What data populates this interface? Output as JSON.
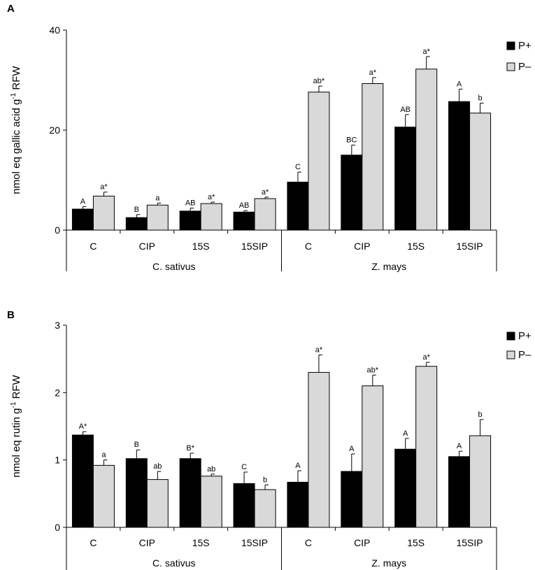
{
  "chart_data": [
    {
      "panel": "A",
      "type": "bar",
      "ylabel_main": "nmol eq gallic acid g",
      "ylabel_sup": "-1",
      "ylabel_tail": " RFW",
      "ylim": [
        0,
        40
      ],
      "yticks": [
        0,
        20,
        40
      ],
      "ytick_labels": [
        "0",
        "20",
        "40"
      ],
      "categories": [
        "C",
        "CIP",
        "15S",
        "15SIP",
        "C",
        "CIP",
        "15S",
        "15SIP"
      ],
      "groups": [
        {
          "label": "C. sativus",
          "categories": [
            "C",
            "CIP",
            "15S",
            "15SIP"
          ]
        },
        {
          "label": "Z. mays",
          "categories": [
            "C",
            "CIP",
            "15S",
            "15SIP"
          ]
        }
      ],
      "legend": [
        "P+",
        "P–"
      ],
      "series": [
        {
          "name": "P+",
          "color": "#000000",
          "values": [
            4.2,
            2.5,
            3.8,
            3.6,
            9.6,
            15.0,
            20.6,
            25.7
          ],
          "errors": [
            0.5,
            0.6,
            0.6,
            0.3,
            2.0,
            2.0,
            2.5,
            2.5
          ],
          "labels": [
            "A",
            "B",
            "AB",
            "AB",
            "C",
            "BC",
            "AB",
            "A"
          ]
        },
        {
          "name": "P–",
          "color": "#d9d9d9",
          "values": [
            6.8,
            5.0,
            5.3,
            6.3,
            27.6,
            29.3,
            32.2,
            23.4
          ],
          "errors": [
            0.8,
            0.4,
            0.3,
            0.3,
            1.2,
            1.2,
            2.5,
            2.0
          ],
          "labels": [
            "a*",
            "a",
            "a*",
            "a*",
            "ab*",
            "a*",
            "a*",
            "b"
          ]
        }
      ]
    },
    {
      "panel": "B",
      "type": "bar",
      "ylabel_main": "nmol eq rutin g",
      "ylabel_sup": "-1",
      "ylabel_tail": " RFW",
      "ylim": [
        0,
        3
      ],
      "yticks": [
        0,
        1,
        2,
        3
      ],
      "ytick_labels": [
        "0",
        "1",
        "2",
        "3"
      ],
      "categories": [
        "C",
        "CIP",
        "15S",
        "15SIP",
        "C",
        "CIP",
        "15S",
        "15SIP"
      ],
      "groups": [
        {
          "label": "C. sativus",
          "categories": [
            "C",
            "CIP",
            "15S",
            "15SIP"
          ]
        },
        {
          "label": "Z. mays",
          "categories": [
            "C",
            "CIP",
            "15S",
            "15SIP"
          ]
        }
      ],
      "legend": [
        "P+",
        "P–"
      ],
      "series": [
        {
          "name": "P+",
          "color": "#000000",
          "values": [
            1.37,
            1.02,
            1.02,
            0.65,
            0.67,
            0.83,
            1.16,
            1.05
          ],
          "errors": [
            0.05,
            0.13,
            0.08,
            0.17,
            0.17,
            0.26,
            0.16,
            0.08
          ],
          "labels": [
            "A*",
            "B",
            "B*",
            "C",
            "A",
            "A",
            "A",
            "A"
          ]
        },
        {
          "name": "P–",
          "color": "#d9d9d9",
          "values": [
            0.92,
            0.71,
            0.76,
            0.56,
            2.3,
            2.1,
            2.39,
            1.36
          ],
          "errors": [
            0.08,
            0.12,
            0.03,
            0.07,
            0.26,
            0.16,
            0.06,
            0.24
          ],
          "labels": [
            "a",
            "ab",
            "ab",
            "b",
            "a*",
            "ab*",
            "a*",
            "b"
          ]
        }
      ]
    }
  ]
}
